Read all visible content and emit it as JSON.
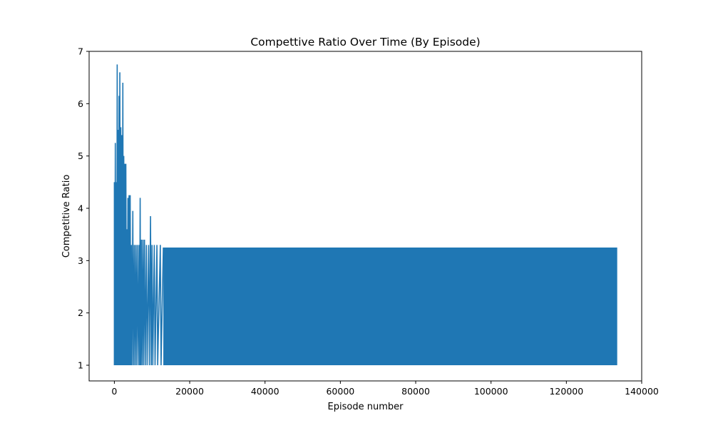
{
  "chart_data": {
    "type": "line",
    "title": "Compettive Ratio Over Time (By Episode)",
    "xlabel": "Episode number",
    "ylabel": "Competitive Ratio",
    "xlim": [
      -6700,
      140000
    ],
    "ylim": [
      0.7,
      7.0
    ],
    "xticks": [
      0,
      20000,
      40000,
      60000,
      80000,
      100000,
      120000,
      140000
    ],
    "yticks": [
      1,
      2,
      3,
      4,
      5,
      6,
      7
    ],
    "grid": false,
    "series": [
      {
        "color": "#1f77b4",
        "points": [
          {
            "x": 0,
            "y": 1.0
          },
          {
            "x": 0,
            "y": 4.5
          },
          {
            "x": 150,
            "y": 1.0
          },
          {
            "x": 250,
            "y": 5.25
          },
          {
            "x": 400,
            "y": 1.0
          },
          {
            "x": 500,
            "y": 4.5
          },
          {
            "x": 650,
            "y": 1.0
          },
          {
            "x": 750,
            "y": 6.75
          },
          {
            "x": 900,
            "y": 1.0
          },
          {
            "x": 1000,
            "y": 5.5
          },
          {
            "x": 1150,
            "y": 1.0
          },
          {
            "x": 1250,
            "y": 6.15
          },
          {
            "x": 1400,
            "y": 1.0
          },
          {
            "x": 1450,
            "y": 6.6
          },
          {
            "x": 1600,
            "y": 1.0
          },
          {
            "x": 1700,
            "y": 5.55
          },
          {
            "x": 1850,
            "y": 1.0
          },
          {
            "x": 1950,
            "y": 5.4
          },
          {
            "x": 2100,
            "y": 1.0
          },
          {
            "x": 2250,
            "y": 6.4
          },
          {
            "x": 2400,
            "y": 1.0
          },
          {
            "x": 2500,
            "y": 5.0
          },
          {
            "x": 2650,
            "y": 1.0
          },
          {
            "x": 2750,
            "y": 4.85
          },
          {
            "x": 2900,
            "y": 1.0
          },
          {
            "x": 3050,
            "y": 4.85
          },
          {
            "x": 3200,
            "y": 1.0
          },
          {
            "x": 3300,
            "y": 3.6
          },
          {
            "x": 3450,
            "y": 1.0
          },
          {
            "x": 3600,
            "y": 4.2
          },
          {
            "x": 3750,
            "y": 1.0
          },
          {
            "x": 3900,
            "y": 4.25
          },
          {
            "x": 4050,
            "y": 1.0
          },
          {
            "x": 4200,
            "y": 4.25
          },
          {
            "x": 4350,
            "y": 1.0
          },
          {
            "x": 4500,
            "y": 3.3
          },
          {
            "x": 4650,
            "y": 1.0
          },
          {
            "x": 4900,
            "y": 3.95
          },
          {
            "x": 5050,
            "y": 1.0
          },
          {
            "x": 5300,
            "y": 3.3
          },
          {
            "x": 5450,
            "y": 1.0
          },
          {
            "x": 5700,
            "y": 3.3
          },
          {
            "x": 5850,
            "y": 1.0
          },
          {
            "x": 6100,
            "y": 3.3
          },
          {
            "x": 6300,
            "y": 1.0
          },
          {
            "x": 6550,
            "y": 3.3
          },
          {
            "x": 6700,
            "y": 1.0
          },
          {
            "x": 6850,
            "y": 4.2
          },
          {
            "x": 7000,
            "y": 1.0
          },
          {
            "x": 7200,
            "y": 3.4
          },
          {
            "x": 7350,
            "y": 1.0
          },
          {
            "x": 7600,
            "y": 3.4
          },
          {
            "x": 7750,
            "y": 1.0
          },
          {
            "x": 8000,
            "y": 3.4
          },
          {
            "x": 8200,
            "y": 1.0
          },
          {
            "x": 8500,
            "y": 3.3
          },
          {
            "x": 8700,
            "y": 1.0
          },
          {
            "x": 9100,
            "y": 3.3
          },
          {
            "x": 9300,
            "y": 1.0
          },
          {
            "x": 9600,
            "y": 3.85
          },
          {
            "x": 9800,
            "y": 1.0
          },
          {
            "x": 10000,
            "y": 3.3
          },
          {
            "x": 10200,
            "y": 1.0
          },
          {
            "x": 10600,
            "y": 3.3
          },
          {
            "x": 10800,
            "y": 1.0
          },
          {
            "x": 11300,
            "y": 3.3
          },
          {
            "x": 11500,
            "y": 1.0
          },
          {
            "x": 12200,
            "y": 3.3
          },
          {
            "x": 12400,
            "y": 1.0
          },
          {
            "x": 13000,
            "y": 3.25
          }
        ],
        "band": {
          "x_start": 13000,
          "x_end": 133500,
          "y_low": 1.0,
          "y_high": 3.25
        }
      }
    ]
  }
}
